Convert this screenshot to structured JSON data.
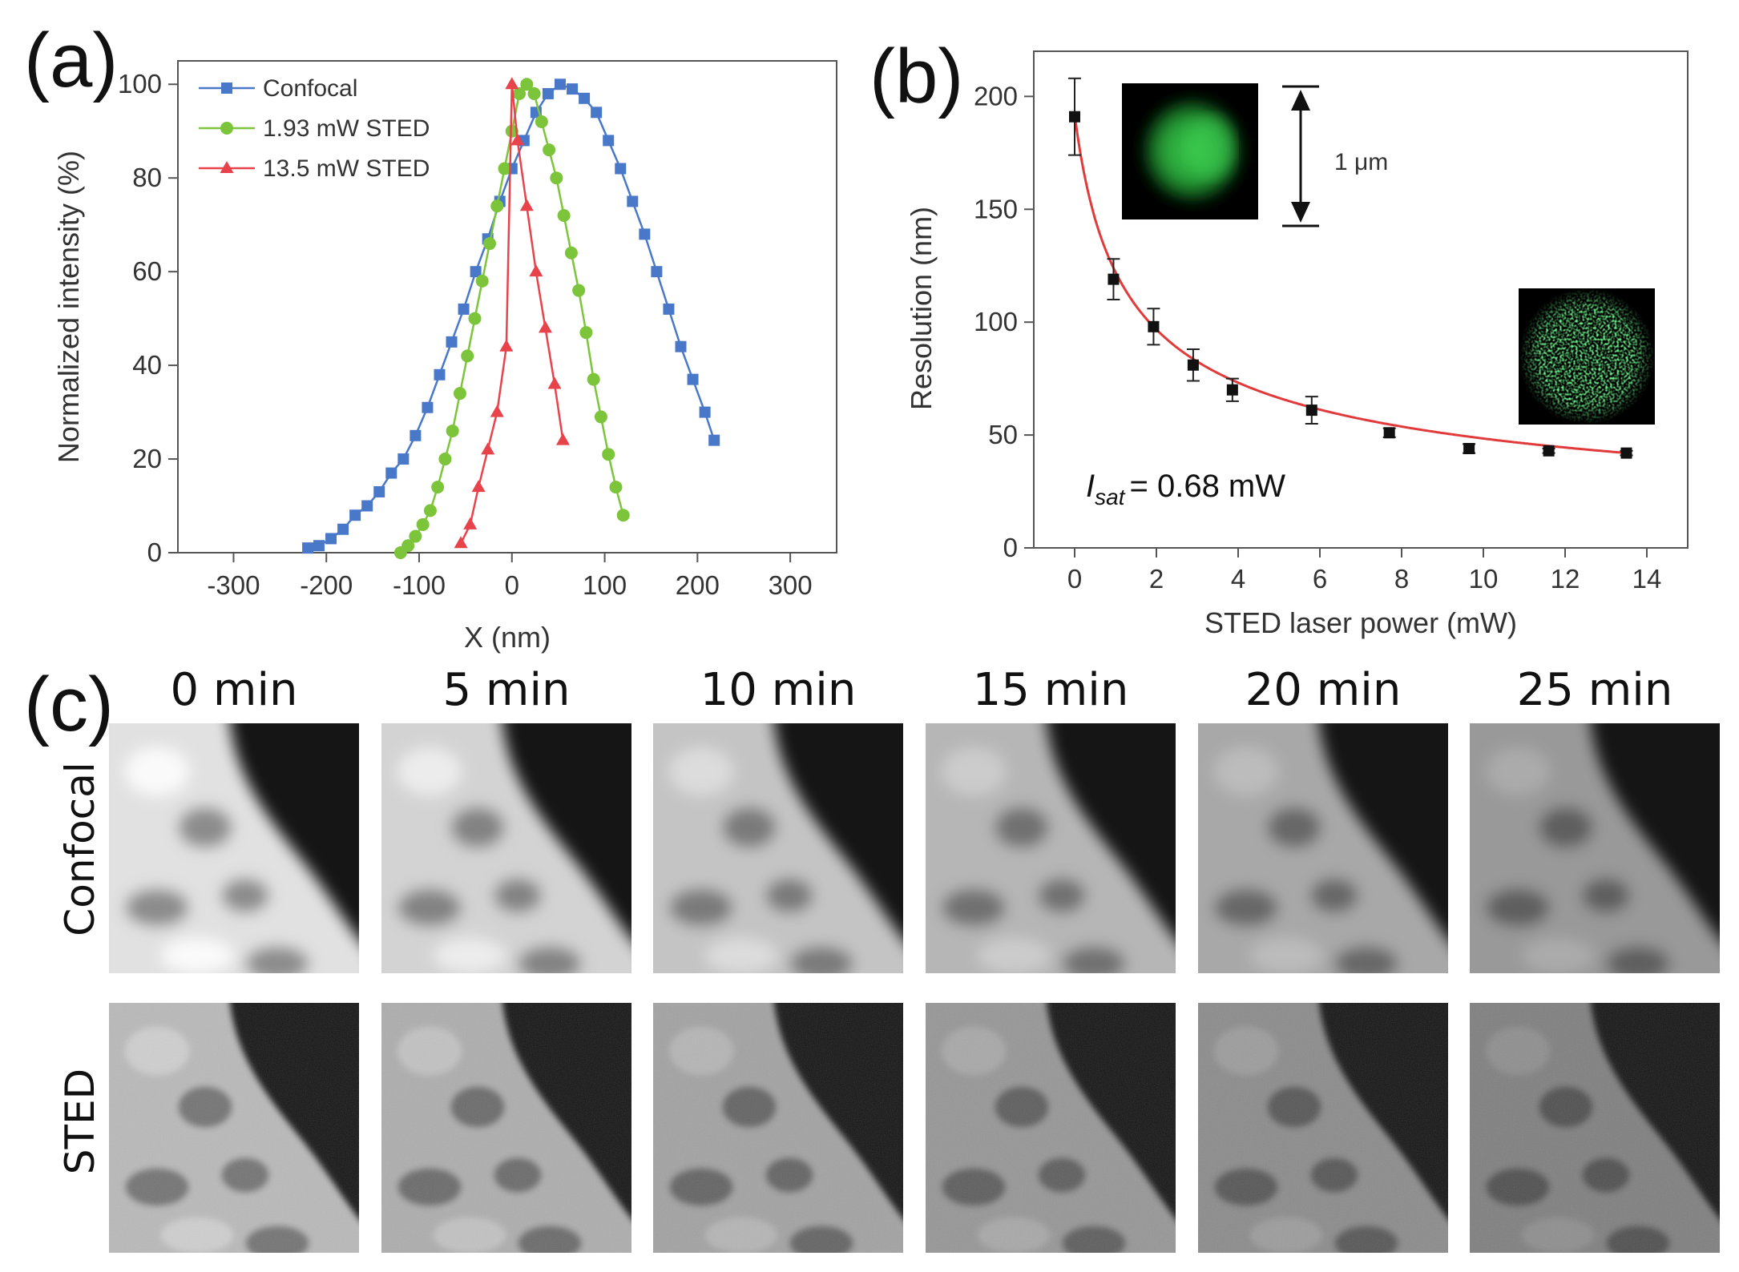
{
  "panel_labels": [
    "(a)",
    "(b)",
    "(c)"
  ],
  "chart_data": [
    {
      "panel": "(a)",
      "type": "line",
      "xlabel": "X (nm)",
      "ylabel": "Normalized intensity (%)",
      "xlim": [
        -360,
        350
      ],
      "ylim": [
        0,
        105
      ],
      "xticks": [
        -300,
        -200,
        -100,
        0,
        100,
        200,
        300
      ],
      "yticks": [
        0,
        20,
        40,
        60,
        80,
        100
      ],
      "grid": false,
      "legend_position": "top-left",
      "series": [
        {
          "name": "Confocal",
          "color": "#4a78c9",
          "marker": "square",
          "x": [
            -220,
            -208,
            -195,
            -182,
            -169,
            -156,
            -143,
            -130,
            -117,
            -104,
            -91,
            -78,
            -65,
            -52,
            -39,
            -26,
            -13,
            0,
            13,
            26,
            39,
            52,
            65,
            78,
            91,
            104,
            117,
            130,
            143,
            156,
            169,
            182,
            195,
            208,
            218
          ],
          "y": [
            1,
            1.5,
            3,
            5,
            8,
            10,
            13,
            17,
            20,
            25,
            31,
            38,
            45,
            52,
            60,
            67,
            75,
            82,
            88,
            94,
            98,
            100,
            99,
            97,
            94,
            88,
            82,
            75,
            68,
            60,
            52,
            44,
            37,
            30,
            24
          ]
        },
        {
          "name": "1.93 mW STED",
          "color": "#7cc43a",
          "marker": "circle",
          "x": [
            -120,
            -112,
            -104,
            -96,
            -88,
            -80,
            -72,
            -64,
            -56,
            -48,
            -40,
            -32,
            -24,
            -16,
            -8,
            0,
            8,
            16,
            24,
            32,
            40,
            48,
            56,
            64,
            72,
            80,
            88,
            96,
            104,
            112,
            120
          ],
          "y": [
            0,
            1.5,
            3.5,
            6,
            9,
            14,
            20,
            26,
            34,
            42,
            50,
            58,
            66,
            74,
            82,
            90,
            98,
            100,
            98,
            92,
            86,
            80,
            72,
            64,
            56,
            47,
            37,
            29,
            21,
            14,
            8
          ]
        },
        {
          "name": "13.5 mW STED",
          "color": "#e8434b",
          "marker": "triangle",
          "x": [
            -55,
            -45,
            -36,
            -26,
            -16,
            -6,
            0,
            6,
            16,
            26,
            36,
            46,
            55
          ],
          "y": [
            2,
            6,
            14,
            22,
            30,
            44,
            100,
            88,
            74,
            60,
            48,
            36,
            24
          ]
        }
      ]
    },
    {
      "panel": "(b)",
      "type": "scatter",
      "xlabel": "STED laser power (mW)",
      "ylabel": "Resolution (nm)",
      "xlim": [
        -1,
        15
      ],
      "ylim": [
        0,
        220
      ],
      "xticks": [
        0,
        2,
        4,
        6,
        8,
        10,
        12,
        14
      ],
      "yticks": [
        0,
        50,
        100,
        150,
        200
      ],
      "grid": false,
      "annotation_symbol": "I",
      "annotation_sub": "sat",
      "annotation_value": "= 0.68 mW",
      "scale_label": "1 μm",
      "fit_color": "#e23a3a",
      "points": [
        {
          "x": 0,
          "y": 191,
          "err": 17
        },
        {
          "x": 0.95,
          "y": 119,
          "err": 9
        },
        {
          "x": 1.93,
          "y": 98,
          "err": 8
        },
        {
          "x": 2.9,
          "y": 81,
          "err": 7
        },
        {
          "x": 3.86,
          "y": 70,
          "err": 5
        },
        {
          "x": 5.8,
          "y": 61,
          "err": 6
        },
        {
          "x": 7.7,
          "y": 51,
          "err": 2
        },
        {
          "x": 9.65,
          "y": 44,
          "err": 2
        },
        {
          "x": 11.6,
          "y": 43,
          "err": 1
        },
        {
          "x": 13.5,
          "y": 42,
          "err": 1
        }
      ]
    }
  ],
  "panel_c": {
    "time_labels": [
      "0 min",
      "5 min",
      "10 min",
      "15 min",
      "20 min",
      "25 min"
    ],
    "row_labels": [
      "Confocal",
      "STED"
    ]
  }
}
